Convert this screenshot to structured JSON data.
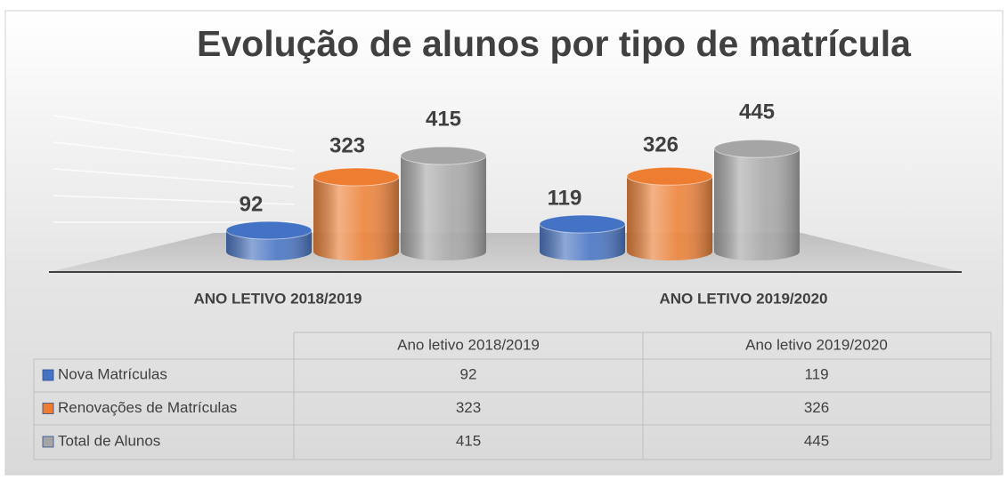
{
  "chart_data": {
    "type": "bar3d",
    "title": "Evolução de alunos por tipo de matrícula",
    "categories": [
      "Ano letivo 2018/2019",
      "Ano letivo 2019/2020"
    ],
    "series": [
      {
        "name": "Nova Matrículas",
        "color": "#4472c4",
        "values": [
          92,
          119
        ]
      },
      {
        "name": "Renovações de Matrículas",
        "color": "#ed7d31",
        "values": [
          323,
          326
        ]
      },
      {
        "name": "Total de Alunos",
        "color": "#a5a5a5",
        "values": [
          415,
          445
        ]
      }
    ],
    "data_table": true
  }
}
